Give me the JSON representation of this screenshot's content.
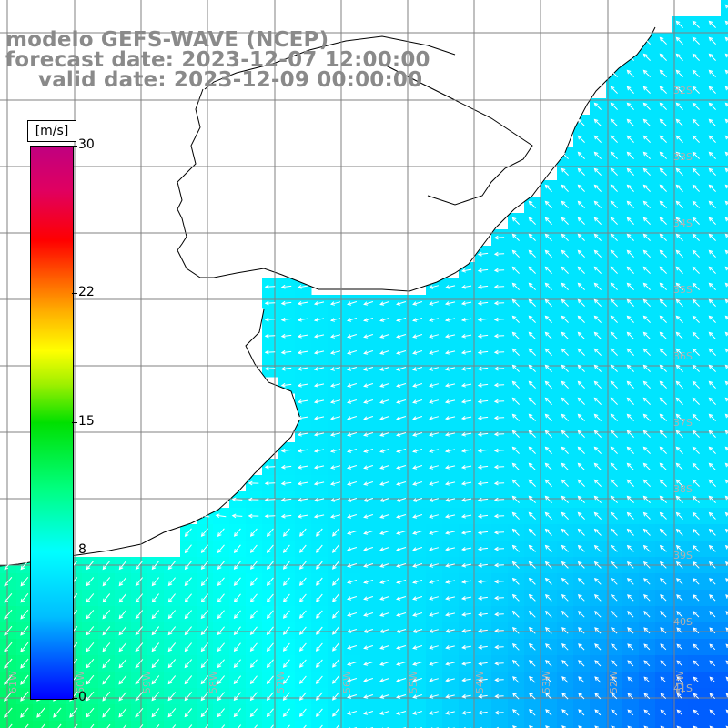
{
  "title": {
    "line1": "modelo GEFS-WAVE (NCEP)",
    "line2": "forecast date: 2023-12-07 12:00:00",
    "line3": "valid date: 2023-12-09 00:00:00"
  },
  "colorbar": {
    "unit": "[m/s]",
    "ticks": [
      {
        "label": "30",
        "value": 30
      },
      {
        "label": "22",
        "value": 22
      },
      {
        "label": "15",
        "value": 15
      },
      {
        "label": "8",
        "value": 8
      },
      {
        "label": "0",
        "value": 0
      }
    ],
    "colors": [
      "#0000ff",
      "#00bfff",
      "#00ffff",
      "#00ff80",
      "#00e000",
      "#ffff00",
      "#ff6000",
      "#ff0000",
      "#c00080"
    ]
  },
  "map": {
    "lat_labels": [
      "32S",
      "33S",
      "34S",
      "35S",
      "36S",
      "37S",
      "38S",
      "39S",
      "40S",
      "41S"
    ],
    "lon_labels": [
      "61W",
      "60W",
      "59W",
      "58W",
      "57W",
      "56W",
      "55W",
      "54W",
      "53W",
      "52W",
      "51W"
    ],
    "land_color": "#ffffff",
    "grid_color": "#808080"
  }
}
